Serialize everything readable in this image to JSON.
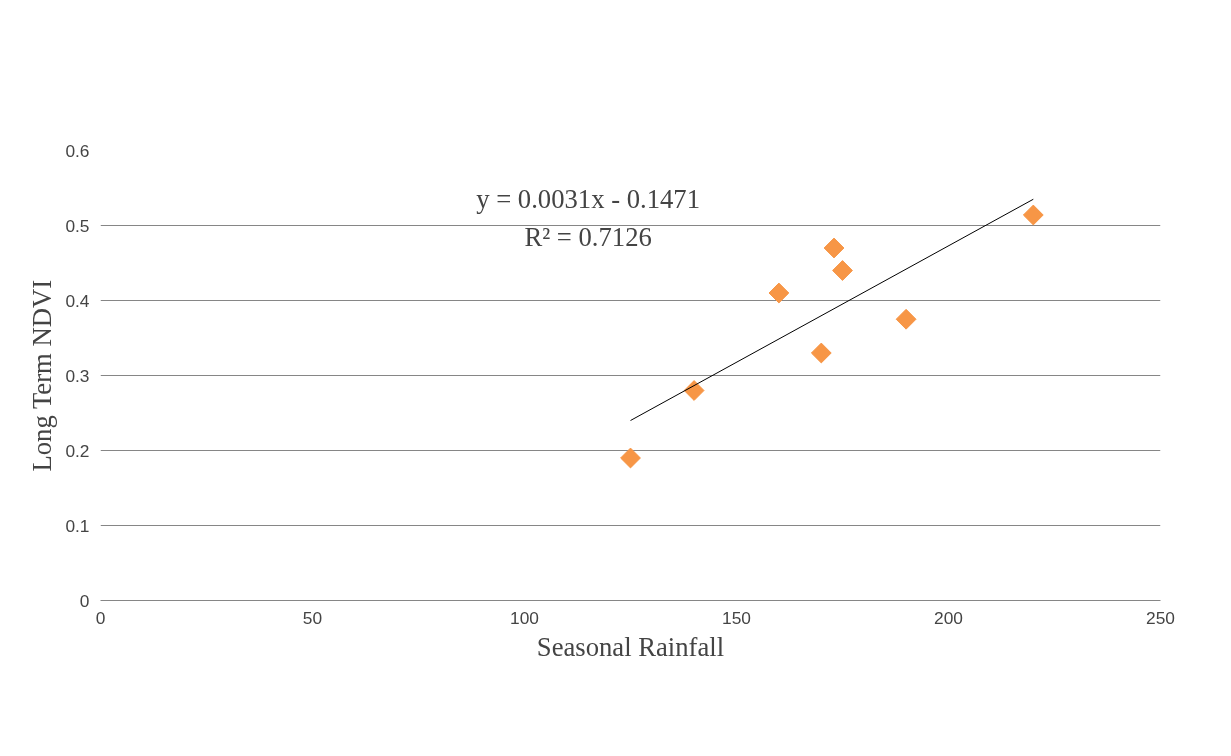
{
  "chart_data": {
    "type": "scatter",
    "xlabel": "Seasonal Rainfall",
    "ylabel": "Long Term NDVI",
    "xlim": [
      0,
      250
    ],
    "xticks": [
      0,
      50,
      100,
      150,
      200,
      250
    ],
    "ylim": [
      0,
      0.6
    ],
    "yticks": [
      0,
      0.1,
      0.2,
      0.3,
      0.4,
      0.5,
      0.6
    ],
    "grid": "y",
    "annotations": [
      "y = 0.0031x - 0.1471",
      "R² = 0.7126"
    ],
    "series": [
      {
        "marker": "diamond",
        "color": "#f79646",
        "x": [
          125,
          140,
          160,
          170,
          173,
          175,
          190,
          220
        ],
        "values": [
          0.19,
          0.28,
          0.41,
          0.33,
          0.47,
          0.44,
          0.375,
          0.514
        ]
      },
      {
        "type": "line",
        "marker": "none",
        "color": "#000000",
        "x": [
          125,
          220
        ],
        "values": [
          0.24,
          0.535
        ]
      }
    ]
  }
}
